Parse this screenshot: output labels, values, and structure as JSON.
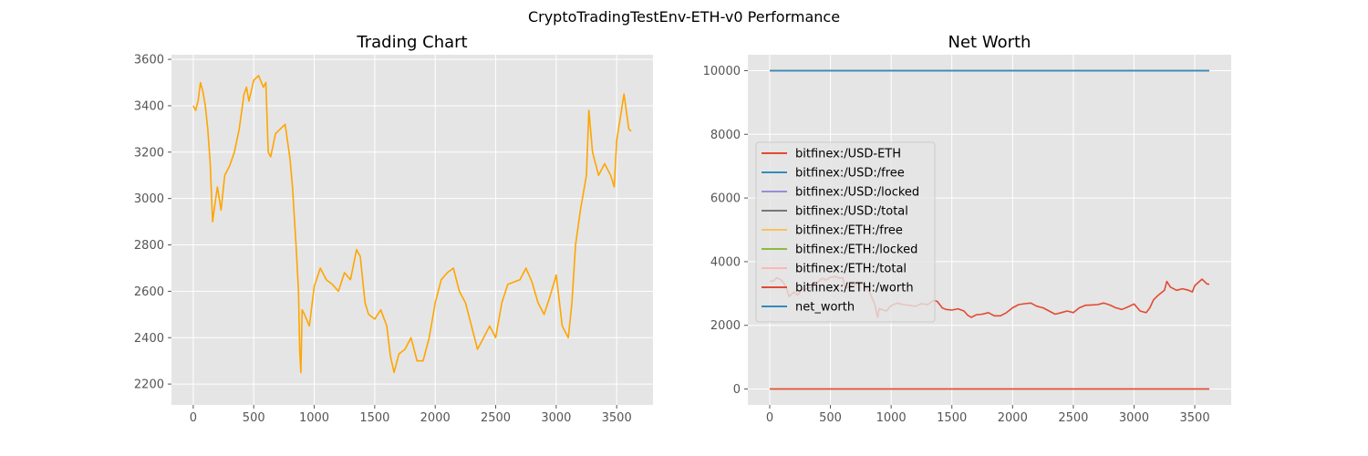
{
  "figure_title": "CryptoTradingTestEnv-ETH-v0 Performance",
  "colors": {
    "panel_bg": "#E5E5E5",
    "grid": "#FFFFFF",
    "tick_text": "#555555",
    "title_text": "#000000",
    "price_line": "#FFA500"
  },
  "chart_data": [
    {
      "type": "line",
      "title": "Trading Chart",
      "xlabel": "",
      "ylabel": "",
      "xlim": [
        -180,
        3800
      ],
      "ylim": [
        2110,
        3620
      ],
      "xticks": [
        0,
        500,
        1000,
        1500,
        2000,
        2500,
        3000,
        3500
      ],
      "yticks": [
        2200,
        2400,
        2600,
        2800,
        3000,
        3200,
        3400,
        3600
      ],
      "grid": true,
      "legend": "none",
      "series": [
        {
          "color": "#FFA500",
          "x": [
            0,
            20,
            40,
            60,
            80,
            100,
            120,
            140,
            160,
            180,
            200,
            230,
            260,
            300,
            340,
            380,
            420,
            440,
            460,
            500,
            540,
            580,
            600,
            620,
            640,
            680,
            720,
            760,
            800,
            820,
            850,
            870,
            880,
            890,
            900,
            920,
            960,
            1000,
            1050,
            1100,
            1150,
            1200,
            1250,
            1300,
            1350,
            1380,
            1420,
            1450,
            1500,
            1550,
            1600,
            1630,
            1660,
            1700,
            1750,
            1800,
            1850,
            1900,
            1950,
            2000,
            2050,
            2100,
            2150,
            2200,
            2250,
            2300,
            2350,
            2400,
            2450,
            2500,
            2550,
            2600,
            2650,
            2700,
            2750,
            2800,
            2850,
            2900,
            2950,
            3000,
            3050,
            3080,
            3100,
            3130,
            3160,
            3200,
            3250,
            3270,
            3300,
            3350,
            3400,
            3450,
            3480,
            3500,
            3530,
            3560,
            3600,
            3620
          ],
          "y": [
            3400,
            3380,
            3420,
            3500,
            3460,
            3400,
            3300,
            3150,
            2900,
            2980,
            3050,
            2950,
            3100,
            3140,
            3200,
            3300,
            3450,
            3480,
            3420,
            3510,
            3530,
            3480,
            3500,
            3200,
            3180,
            3280,
            3300,
            3320,
            3170,
            3050,
            2800,
            2600,
            2350,
            2250,
            2520,
            2500,
            2450,
            2620,
            2700,
            2650,
            2630,
            2600,
            2680,
            2650,
            2780,
            2750,
            2550,
            2500,
            2480,
            2520,
            2450,
            2320,
            2250,
            2330,
            2350,
            2400,
            2300,
            2300,
            2400,
            2550,
            2650,
            2680,
            2700,
            2600,
            2550,
            2450,
            2350,
            2400,
            2450,
            2400,
            2550,
            2630,
            2640,
            2650,
            2700,
            2640,
            2550,
            2500,
            2580,
            2670,
            2450,
            2420,
            2400,
            2550,
            2800,
            2950,
            3100,
            3380,
            3200,
            3100,
            3150,
            3100,
            3050,
            3250,
            3350,
            3450,
            3300,
            3290
          ]
        }
      ]
    },
    {
      "type": "line",
      "title": "Net Worth",
      "xlabel": "",
      "ylabel": "",
      "xlim": [
        -180,
        3800
      ],
      "ylim": [
        -500,
        10500
      ],
      "xticks": [
        0,
        500,
        1000,
        1500,
        2000,
        2500,
        3000,
        3500
      ],
      "yticks": [
        0,
        2000,
        4000,
        6000,
        8000,
        10000
      ],
      "grid": true,
      "legend": "center-left",
      "legend_entries": [
        {
          "label": "bitfinex:/USD-ETH",
          "color": "#E24A33"
        },
        {
          "label": "bitfinex:/USD:/free",
          "color": "#348ABD"
        },
        {
          "label": "bitfinex:/USD:/locked",
          "color": "#988ED5"
        },
        {
          "label": "bitfinex:/USD:/total",
          "color": "#777777"
        },
        {
          "label": "bitfinex:/ETH:/free",
          "color": "#FBC15E"
        },
        {
          "label": "bitfinex:/ETH:/locked",
          "color": "#8EBA42"
        },
        {
          "label": "bitfinex:/ETH:/total",
          "color": "#FFB5B8"
        },
        {
          "label": "bitfinex:/ETH:/worth",
          "color": "#E24A33"
        },
        {
          "label": "net_worth",
          "color": "#348ABD"
        }
      ],
      "series": [
        {
          "name": "bitfinex:/USD-ETH",
          "color": "#E24A33",
          "x": [
            0,
            20,
            40,
            60,
            80,
            100,
            120,
            140,
            160,
            180,
            200,
            230,
            260,
            300,
            340,
            380,
            420,
            440,
            460,
            500,
            540,
            580,
            600,
            620,
            640,
            680,
            720,
            760,
            800,
            820,
            850,
            870,
            880,
            890,
            900,
            920,
            960,
            1000,
            1050,
            1100,
            1150,
            1200,
            1250,
            1300,
            1350,
            1380,
            1420,
            1450,
            1500,
            1550,
            1600,
            1630,
            1660,
            1700,
            1750,
            1800,
            1850,
            1900,
            1950,
            2000,
            2050,
            2100,
            2150,
            2200,
            2250,
            2300,
            2350,
            2400,
            2450,
            2500,
            2550,
            2600,
            2650,
            2700,
            2750,
            2800,
            2850,
            2900,
            2950,
            3000,
            3050,
            3080,
            3100,
            3130,
            3160,
            3200,
            3250,
            3270,
            3300,
            3350,
            3400,
            3450,
            3480,
            3500,
            3530,
            3560,
            3600,
            3620
          ],
          "y": [
            3400,
            3380,
            3420,
            3500,
            3460,
            3400,
            3300,
            3150,
            2900,
            2980,
            3050,
            2950,
            3100,
            3140,
            3200,
            3300,
            3450,
            3480,
            3420,
            3510,
            3530,
            3480,
            3500,
            3200,
            3180,
            3280,
            3300,
            3320,
            3170,
            3050,
            2800,
            2600,
            2350,
            2250,
            2520,
            2500,
            2450,
            2620,
            2700,
            2650,
            2630,
            2600,
            2680,
            2650,
            2780,
            2750,
            2550,
            2500,
            2480,
            2520,
            2450,
            2320,
            2250,
            2330,
            2350,
            2400,
            2300,
            2300,
            2400,
            2550,
            2650,
            2680,
            2700,
            2600,
            2550,
            2450,
            2350,
            2400,
            2450,
            2400,
            2550,
            2630,
            2640,
            2650,
            2700,
            2640,
            2550,
            2500,
            2580,
            2670,
            2450,
            2420,
            2400,
            2550,
            2800,
            2950,
            3100,
            3380,
            3200,
            3100,
            3150,
            3100,
            3050,
            3250,
            3350,
            3450,
            3300,
            3290
          ]
        },
        {
          "name": "bitfinex:/USD:/free",
          "color": "#348ABD",
          "x": [
            0,
            3620
          ],
          "y": [
            10000,
            10000
          ]
        },
        {
          "name": "bitfinex:/USD:/locked",
          "color": "#988ED5",
          "x": [
            0,
            3620
          ],
          "y": [
            0,
            0
          ]
        },
        {
          "name": "bitfinex:/USD:/total",
          "color": "#777777",
          "x": [
            0,
            3620
          ],
          "y": [
            10000,
            10000
          ]
        },
        {
          "name": "bitfinex:/ETH:/free",
          "color": "#FBC15E",
          "x": [
            0,
            3620
          ],
          "y": [
            0,
            0
          ]
        },
        {
          "name": "bitfinex:/ETH:/locked",
          "color": "#8EBA42",
          "x": [
            0,
            3620
          ],
          "y": [
            0,
            0
          ]
        },
        {
          "name": "bitfinex:/ETH:/total",
          "color": "#FFB5B8",
          "x": [
            0,
            3620
          ],
          "y": [
            0,
            0
          ]
        },
        {
          "name": "bitfinex:/ETH:/worth",
          "color": "#E24A33",
          "x": [
            0,
            3620
          ],
          "y": [
            0,
            0
          ]
        },
        {
          "name": "net_worth",
          "color": "#348ABD",
          "x": [
            0,
            3620
          ],
          "y": [
            10000,
            10000
          ]
        }
      ]
    }
  ]
}
